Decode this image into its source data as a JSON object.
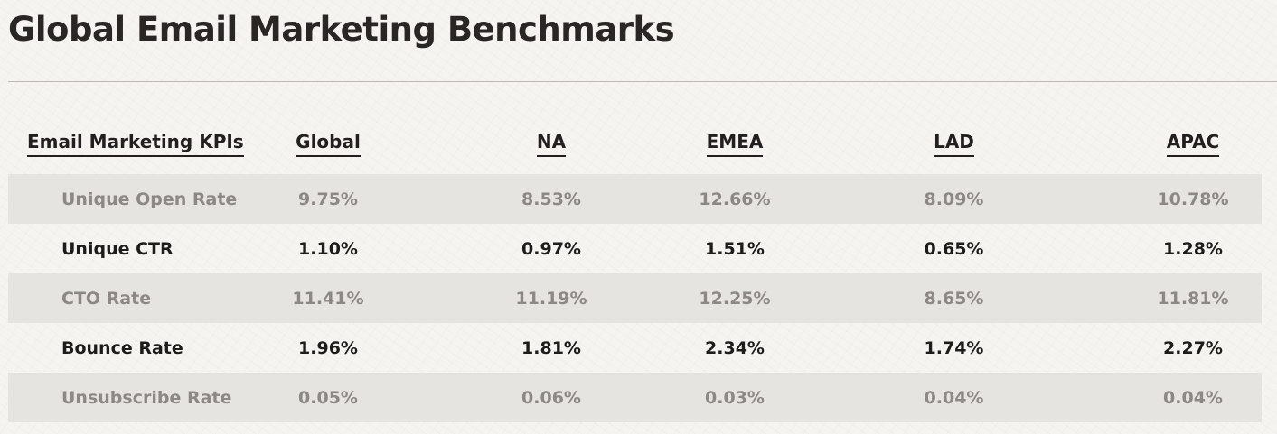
{
  "page": {
    "title": "Global Email Marketing Benchmarks"
  },
  "table": {
    "headers": {
      "kpi": "Email Marketing KPIs",
      "global": "Global",
      "na": "NA",
      "emea": "EMEA",
      "lad": "LAD",
      "apac": "APAC"
    },
    "rows": [
      {
        "kpi": "Unique Open Rate",
        "global": "9.75%",
        "na": "8.53%",
        "emea": "12.66%",
        "lad": "8.09%",
        "apac": "10.78%"
      },
      {
        "kpi": "Unique CTR",
        "global": "1.10%",
        "na": "0.97%",
        "emea": "1.51%",
        "lad": "0.65%",
        "apac": "1.28%"
      },
      {
        "kpi": "CTO Rate",
        "global": "11.41%",
        "na": "11.19%",
        "emea": "12.25%",
        "lad": "8.65%",
        "apac": "11.81%"
      },
      {
        "kpi": "Bounce Rate",
        "global": "1.96%",
        "na": "1.81%",
        "emea": "2.34%",
        "lad": "1.74%",
        "apac": "2.27%"
      },
      {
        "kpi": "Unsubscribe Rate",
        "global": "0.05%",
        "na": "0.06%",
        "emea": "0.03%",
        "lad": "0.04%",
        "apac": "0.04%"
      }
    ]
  },
  "colors": {
    "shaded_row_bg": "#e6e4e1",
    "shaded_row_text": "#8d8886",
    "plain_row_text": "#1e1b1b",
    "page_bg": "#f6f4f1"
  }
}
